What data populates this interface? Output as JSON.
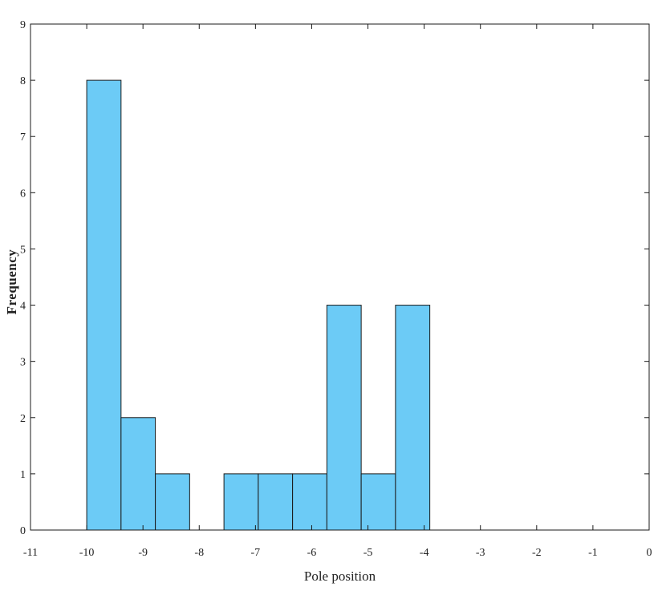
{
  "chart_data": {
    "type": "bar",
    "xlabel": "Pole position",
    "ylabel": "Frequency",
    "xlim": [
      -11,
      0
    ],
    "ylim": [
      0,
      9
    ],
    "xticks": [
      -11,
      -10,
      -9,
      -8,
      -7,
      -6,
      -5,
      -4,
      -3,
      -2,
      -1,
      0
    ],
    "yticks": [
      0,
      1,
      2,
      3,
      4,
      5,
      6,
      7,
      8,
      9
    ],
    "bin_edges": [
      -10,
      -9.39,
      -8.78,
      -8.17,
      -7.56,
      -6.95,
      -6.34,
      -5.73,
      -5.12,
      -4.51,
      -3.9
    ],
    "values": [
      8,
      2,
      1,
      0,
      1,
      1,
      1,
      4,
      1,
      4
    ],
    "bar_color": "#6ccbf6",
    "edge_color": "#1a1a1a",
    "grid": false
  }
}
